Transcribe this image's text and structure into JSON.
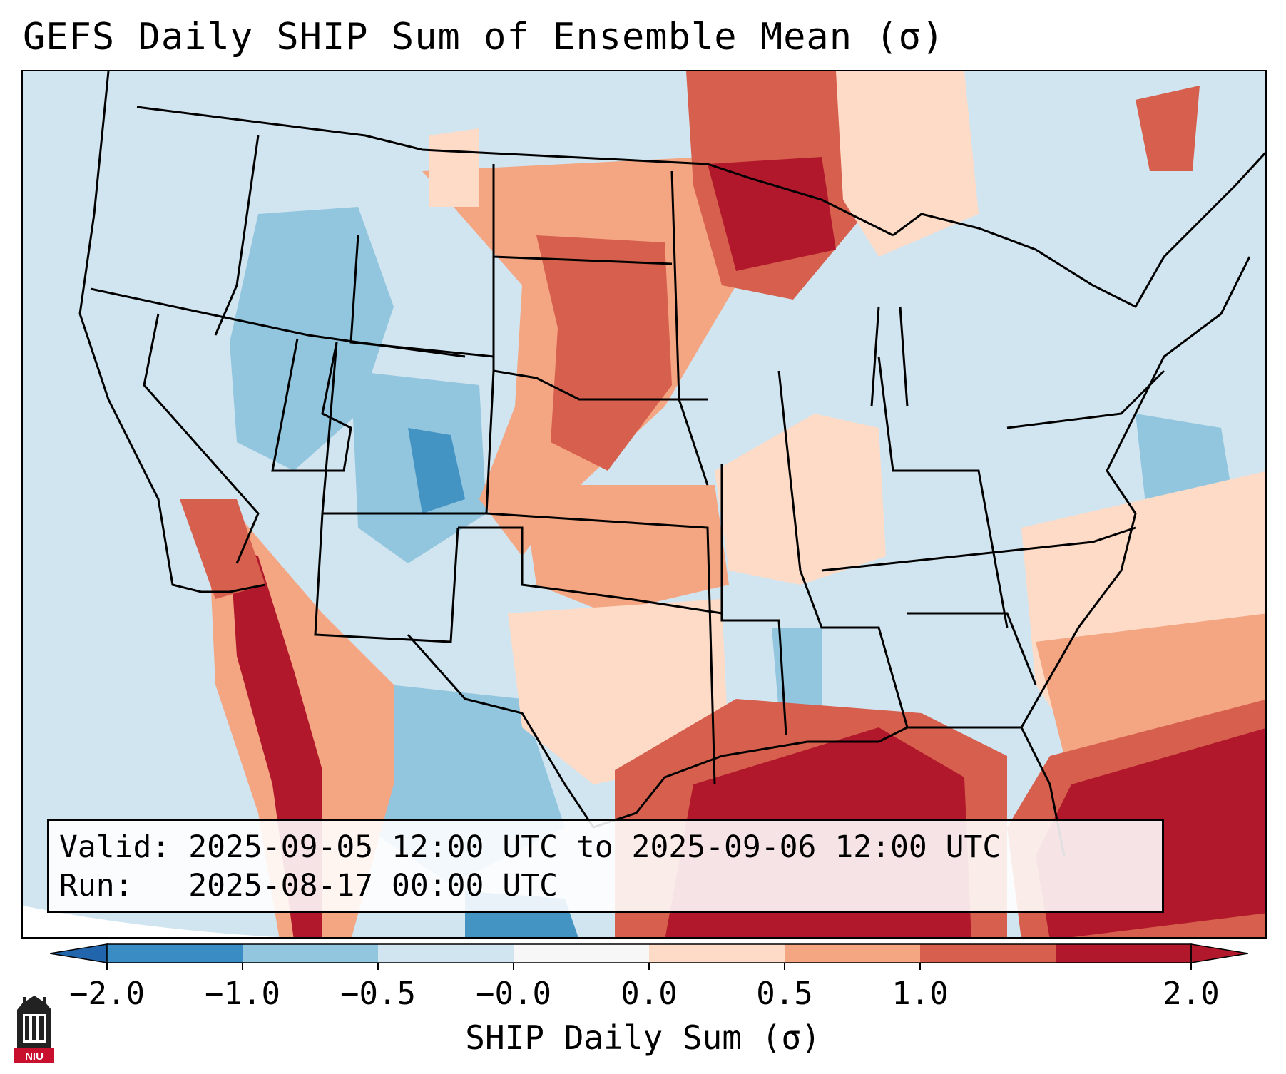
{
  "title": "GEFS Daily SHIP Sum of Ensemble Mean (σ)",
  "info": {
    "valid_label": "Valid:",
    "valid_value": "2025-09-05 12:00 UTC to 2025-09-06 12:00 UTC",
    "run_label": "Run:",
    "run_value": "2025-08-17 00:00 UTC"
  },
  "colorbar": {
    "label": "SHIP Daily Sum (σ)",
    "ticks": [
      "−2.0",
      "−1.0",
      "−0.5",
      "−0.0",
      "0.0",
      "0.5",
      "1.0",
      "2.0"
    ],
    "colors": [
      "#3a8cc4",
      "#92c5de",
      "#d1e5f0",
      "#f7f7f7",
      "#fddbc7",
      "#f4a582",
      "#d6604d",
      "#b2182b"
    ],
    "under_color": "#2166ac",
    "over_color": "#b2182b"
  },
  "logo": {
    "text": "NIU",
    "color": "#c8102e"
  },
  "regions": [
    {
      "name": "pacific-northwest",
      "value": -0.3
    },
    {
      "name": "great-basin",
      "value": -0.7
    },
    {
      "name": "colorado-rockies",
      "value": -1.2
    },
    {
      "name": "desert-southwest-border",
      "value": 1.2
    },
    {
      "name": "northern-plains",
      "value": 1.1
    },
    {
      "name": "upper-midwest-lake-superior",
      "value": 1.6
    },
    {
      "name": "central-plains",
      "value": 0.6
    },
    {
      "name": "midwest",
      "value": 0.3
    },
    {
      "name": "southeast",
      "value": -0.3
    },
    {
      "name": "northeast",
      "value": -0.3
    },
    {
      "name": "gulf-of-mexico",
      "value": 1.8
    },
    {
      "name": "western-atlantic",
      "value": 0.5
    },
    {
      "name": "caribbean",
      "value": 2.0
    },
    {
      "name": "northern-mexico-plateau",
      "value": -0.8
    }
  ]
}
